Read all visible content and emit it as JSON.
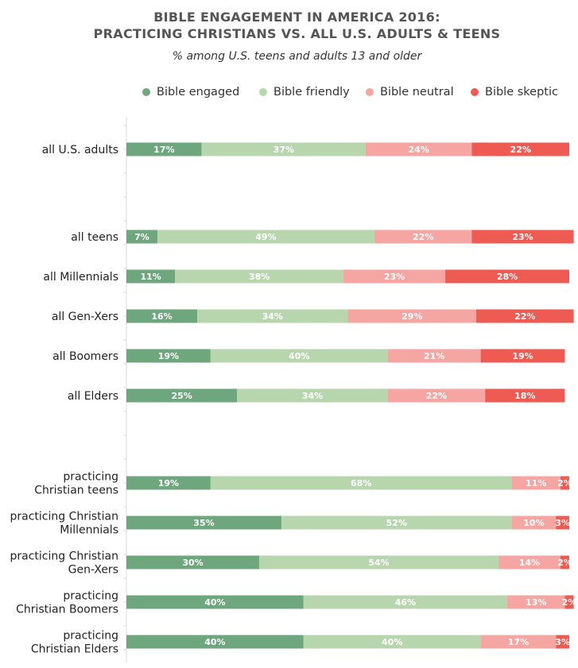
{
  "chart_data": {
    "type": "bar",
    "orientation": "horizontal",
    "stacked": true,
    "title_line1": "BIBLE ENGAGEMENT IN AMERICA 2016:",
    "title_line2": "PRACTICING CHRISTIANS VS. ALL U.S. ADULTS & TEENS",
    "subtitle": "% among U.S. teens and adults 13 and older",
    "legend_position": "top",
    "grid": false,
    "xlim": [
      0,
      100
    ],
    "value_suffix": "%",
    "series": [
      {
        "name": "Bible engaged",
        "color": "#6ea67e"
      },
      {
        "name": "Bible friendly",
        "color": "#b8d6ae"
      },
      {
        "name": "Bible neutral",
        "color": "#f5a6a2"
      },
      {
        "name": "Bible skeptic",
        "color": "#ee5b52"
      }
    ],
    "groups": [
      {
        "rows": [
          {
            "label": [
              "all U.S. adults"
            ],
            "values": [
              17,
              37,
              24,
              22
            ]
          }
        ]
      },
      {
        "rows": [
          {
            "label": [
              "all teens"
            ],
            "values": [
              7,
              49,
              22,
              23
            ]
          },
          {
            "label": [
              "all Millennials"
            ],
            "values": [
              11,
              38,
              23,
              28
            ]
          },
          {
            "label": [
              "all Gen-Xers"
            ],
            "values": [
              16,
              34,
              29,
              22
            ]
          },
          {
            "label": [
              "all Boomers"
            ],
            "values": [
              19,
              40,
              21,
              19
            ]
          },
          {
            "label": [
              "all Elders"
            ],
            "values": [
              25,
              34,
              22,
              18
            ]
          }
        ]
      },
      {
        "rows": [
          {
            "label": [
              "practicing",
              "Christian teens"
            ],
            "values": [
              19,
              68,
              11,
              2
            ]
          },
          {
            "label": [
              "practicing Christian",
              "Millennials"
            ],
            "values": [
              35,
              52,
              10,
              3
            ]
          },
          {
            "label": [
              "practicing Christian",
              "Gen-Xers"
            ],
            "values": [
              30,
              54,
              14,
              2
            ]
          },
          {
            "label": [
              "practicing",
              "Christian Boomers"
            ],
            "values": [
              40,
              46,
              13,
              2
            ]
          },
          {
            "label": [
              "practicing",
              "Christian Elders"
            ],
            "values": [
              40,
              40,
              17,
              3
            ]
          }
        ]
      }
    ]
  }
}
